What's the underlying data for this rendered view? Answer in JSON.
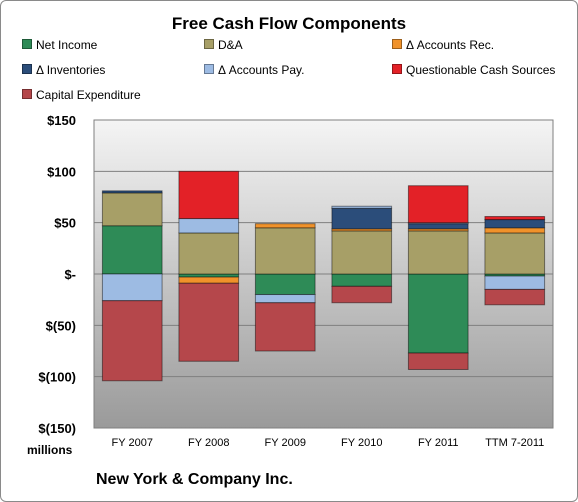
{
  "chart_data": {
    "type": "bar",
    "stacked": true,
    "title": "Free Cash Flow Components",
    "units_label": "millions",
    "categories": [
      "FY 2007",
      "FY 2008",
      "FY 2009",
      "FY 2010",
      "FY 2011",
      "TTM 7-2011"
    ],
    "ylim": [
      -150,
      150
    ],
    "yticks": [
      150,
      100,
      50,
      0,
      -50,
      -100,
      -150
    ],
    "ytick_labels": [
      "$150",
      "$100",
      "$50",
      "$-",
      "$(50)",
      "$(100)",
      "$(150)"
    ],
    "legend_position": "top",
    "series": [
      {
        "name": "Net Income",
        "color": "#2e8b57",
        "values": [
          47,
          -3,
          -20,
          -12,
          -77,
          -2
        ]
      },
      {
        "name": "D&A",
        "color": "#a79f67",
        "values": [
          32,
          40,
          45,
          42,
          42,
          40
        ]
      },
      {
        "name": "Δ Accounts Rec.",
        "color": "#f0922a",
        "values": [
          0,
          -6,
          4,
          2,
          2,
          5
        ]
      },
      {
        "name": "Δ Inventories",
        "color": "#2b4d7a",
        "values": [
          2,
          0,
          0,
          20,
          5,
          8
        ]
      },
      {
        "name": "Δ Accounts Pay.",
        "color": "#9dbbe3",
        "values": [
          -26,
          14,
          -8,
          2,
          1,
          -13
        ]
      },
      {
        "name": "Questionable Cash Sources",
        "color": "#e32127",
        "values": [
          0,
          46,
          0,
          0,
          36,
          3
        ]
      },
      {
        "name": "Capital Expenditure",
        "color": "#b5474b",
        "values": [
          -78,
          -76,
          -47,
          -16,
          -16,
          -15
        ]
      }
    ]
  },
  "footer": {
    "company": "New York & Company Inc."
  }
}
